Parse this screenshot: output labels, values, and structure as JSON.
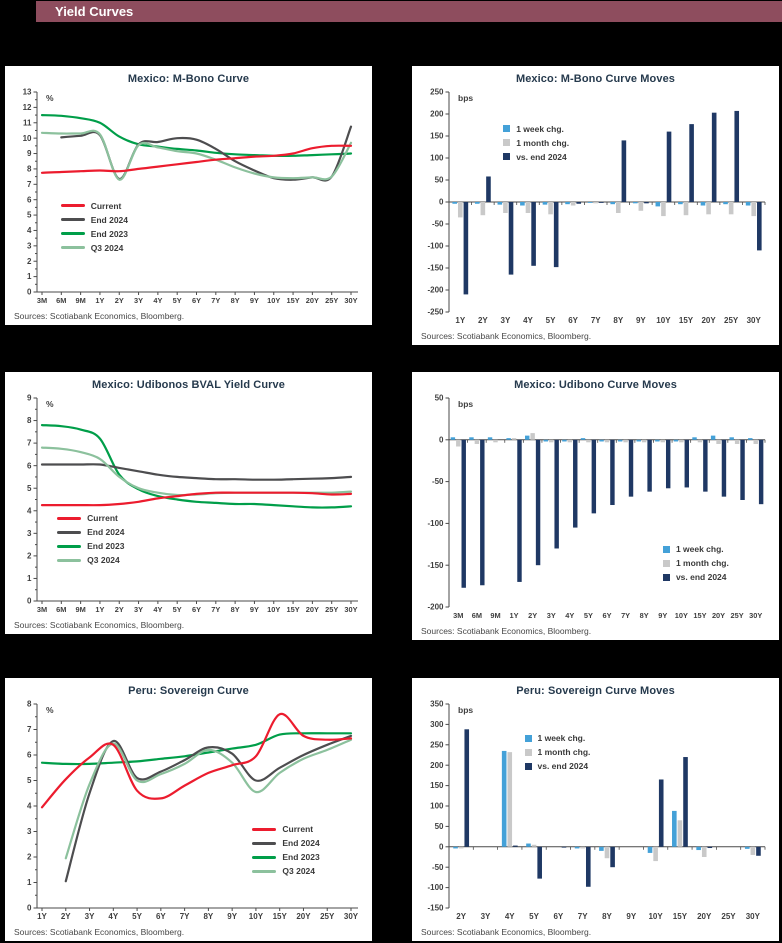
{
  "page": {
    "title": "Yield Curves"
  },
  "colors": {
    "header": "#8E4D5E",
    "current": "#EC1C2E",
    "end2024": "#4D4D4F",
    "end2023": "#009E49",
    "q3_2024": "#8CC19D",
    "week": "#44A1D8",
    "month": "#C9C9C9",
    "vs_end": "#1F3864",
    "axis": "#4A4A4A",
    "unit_label": "#808080"
  },
  "chart_data": [
    {
      "type": "line",
      "title": "Mexico: M-Bono Curve",
      "unit": "%",
      "ylim": [
        0,
        13
      ],
      "ytick": 1,
      "categories": [
        "3M",
        "6M",
        "9M",
        "1Y",
        "2Y",
        "3Y",
        "4Y",
        "5Y",
        "6Y",
        "7Y",
        "8Y",
        "9Y",
        "10Y",
        "15Y",
        "20Y",
        "25Y",
        "30Y"
      ],
      "series": [
        {
          "name": "End 2023",
          "color": "end2023",
          "values": [
            11.5,
            11.45,
            11.3,
            11.0,
            10.1,
            9.6,
            9.45,
            9.3,
            9.2,
            9.05,
            8.95,
            8.9,
            8.85,
            8.85,
            8.9,
            8.95,
            9.0
          ]
        },
        {
          "name": "End 2024",
          "color": "end2024",
          "values": [
            null,
            10.05,
            10.15,
            10.2,
            7.35,
            9.6,
            9.75,
            10.0,
            9.9,
            9.3,
            8.5,
            7.9,
            7.4,
            7.3,
            7.45,
            7.5,
            10.75
          ]
        },
        {
          "name": "Q3 2024",
          "color": "q3_2024",
          "values": [
            10.35,
            10.3,
            10.3,
            10.25,
            7.3,
            9.55,
            9.4,
            9.15,
            9.0,
            8.6,
            8.1,
            7.7,
            7.45,
            7.4,
            7.45,
            7.5,
            9.7
          ]
        },
        {
          "name": "Current",
          "color": "current",
          "values": [
            7.75,
            7.8,
            7.85,
            7.9,
            7.85,
            8.0,
            8.15,
            8.3,
            8.45,
            8.6,
            8.7,
            8.8,
            8.85,
            9.0,
            9.35,
            9.5,
            9.5
          ]
        }
      ],
      "legend_order": [
        "Current",
        "End 2024",
        "End 2023",
        "Q3 2024"
      ],
      "legend_pos": {
        "x": "14%",
        "y": "52%"
      },
      "source": "Sources: Scotiabank Economics, Bloomberg."
    },
    {
      "type": "bar",
      "title": "Mexico: M-Bono Curve Moves",
      "unit": "bps",
      "ylim": [
        -250,
        250
      ],
      "ytick": 50,
      "categories": [
        "1Y",
        "2Y",
        "3Y",
        "4Y",
        "5Y",
        "6Y",
        "7Y",
        "8Y",
        "9Y",
        "10Y",
        "15Y",
        "20Y",
        "25Y",
        "30Y"
      ],
      "series": [
        {
          "name": "1 week chg.",
          "color": "week",
          "values": [
            -4,
            -4,
            -6,
            -8,
            -6,
            -5,
            -2,
            -5,
            -3,
            -10,
            -5,
            -8,
            -5,
            -8
          ]
        },
        {
          "name": "1 month chg.",
          "color": "month",
          "values": [
            -35,
            -30,
            -25,
            -25,
            -28,
            -8,
            -3,
            -25,
            -20,
            -32,
            -30,
            -28,
            -28,
            -32
          ]
        },
        {
          "name": "vs. end 2024",
          "color": "vs_end",
          "values": [
            -210,
            58,
            -165,
            -145,
            -148,
            -4,
            -2,
            140,
            -3,
            160,
            177,
            203,
            207,
            -110
          ]
        }
      ],
      "legend_order": [
        "1 week chg.",
        "1 month chg.",
        "vs. end 2024"
      ],
      "legend_pos": {
        "x": "24%",
        "y": "16%"
      },
      "source": "Sources: Scotiabank Economics, Bloomberg."
    },
    {
      "type": "line",
      "title": "Mexico: Udibonos BVAL Yield Curve",
      "unit": "%",
      "ylim": [
        0,
        9
      ],
      "ytick": 1,
      "categories": [
        "3M",
        "6M",
        "9M",
        "1Y",
        "2Y",
        "3Y",
        "4Y",
        "5Y",
        "6Y",
        "7Y",
        "8Y",
        "9Y",
        "10Y",
        "15Y",
        "20Y",
        "25Y",
        "30Y"
      ],
      "series": [
        {
          "name": "End 2023",
          "color": "end2023",
          "values": [
            7.8,
            7.75,
            7.6,
            7.2,
            5.6,
            4.95,
            4.65,
            4.5,
            4.4,
            4.35,
            4.3,
            4.3,
            4.25,
            4.2,
            4.15,
            4.15,
            4.2
          ]
        },
        {
          "name": "End 2024",
          "color": "end2024",
          "values": [
            6.05,
            6.05,
            6.05,
            6.05,
            5.9,
            5.75,
            5.6,
            5.5,
            5.45,
            5.4,
            5.4,
            5.38,
            5.38,
            5.4,
            5.42,
            5.45,
            5.5
          ]
        },
        {
          "name": "Q3 2024",
          "color": "q3_2024",
          "values": [
            6.8,
            6.75,
            6.6,
            6.3,
            5.5,
            5.0,
            4.8,
            4.7,
            4.72,
            4.78,
            4.8,
            4.8,
            4.8,
            4.8,
            4.8,
            4.8,
            4.85
          ]
        },
        {
          "name": "Current",
          "color": "current",
          "values": [
            4.25,
            4.25,
            4.25,
            4.25,
            4.3,
            4.4,
            4.55,
            4.65,
            4.75,
            4.8,
            4.8,
            4.8,
            4.8,
            4.8,
            4.78,
            4.72,
            4.75
          ]
        }
      ],
      "legend_order": [
        "Current",
        "End 2024",
        "End 2023",
        "Q3 2024"
      ],
      "legend_pos": {
        "x": "13%",
        "y": "54%"
      },
      "source": "Sources: Scotiabank Economics, Bloomberg."
    },
    {
      "type": "bar",
      "title": "Mexico: Udibono Curve Moves",
      "unit": "bps",
      "ylim": [
        -200,
        50
      ],
      "ytick": 50,
      "categories": [
        "3M",
        "6M",
        "9M",
        "1Y",
        "2Y",
        "3Y",
        "4Y",
        "5Y",
        "6Y",
        "7Y",
        "8Y",
        "9Y",
        "10Y",
        "15Y",
        "20Y",
        "25Y",
        "30Y"
      ],
      "series": [
        {
          "name": "1 week chg.",
          "color": "week",
          "values": [
            3,
            3,
            3,
            2,
            5,
            -2,
            -2,
            2,
            -2,
            -2,
            -2,
            -2,
            -2,
            3,
            5,
            3,
            2
          ]
        },
        {
          "name": "1 month chg.",
          "color": "month",
          "values": [
            -8,
            -5,
            -3,
            2,
            8,
            -3,
            -3,
            -3,
            -3,
            -3,
            -3,
            -3,
            -3,
            -3,
            -5,
            -5,
            -5
          ]
        },
        {
          "name": "vs. end 2024",
          "color": "vs_end",
          "values": [
            -177,
            -174,
            0,
            -170,
            -150,
            -130,
            -105,
            -88,
            -78,
            -68,
            -62,
            -58,
            -57,
            -62,
            -68,
            -72,
            -77
          ]
        }
      ],
      "legend_order": [
        "1 week chg.",
        "1 month chg.",
        "vs. end 2024"
      ],
      "legend_pos": {
        "x": "69%",
        "y": "66%"
      },
      "source": "Sources: Scotiabank Economics, Bloomberg."
    },
    {
      "type": "line",
      "title": "Peru: Sovereign Curve",
      "unit": "%",
      "ylim": [
        0,
        8
      ],
      "ytick": 1,
      "categories": [
        "1Y",
        "2Y",
        "3Y",
        "4Y",
        "5Y",
        "6Y",
        "7Y",
        "8Y",
        "9Y",
        "10Y",
        "15Y",
        "20Y",
        "25Y",
        "30Y"
      ],
      "series": [
        {
          "name": "End 2023",
          "color": "end2023",
          "values": [
            5.7,
            5.65,
            5.65,
            5.7,
            5.75,
            5.85,
            5.95,
            6.1,
            6.25,
            6.4,
            6.8,
            6.85,
            6.85,
            6.85
          ]
        },
        {
          "name": "End 2024",
          "color": "end2024",
          "values": [
            null,
            1.05,
            4.5,
            6.55,
            5.1,
            5.35,
            5.8,
            6.3,
            6.05,
            5.0,
            5.5,
            6.0,
            6.4,
            6.75
          ]
        },
        {
          "name": "Q3 2024",
          "color": "q3_2024",
          "values": [
            null,
            1.95,
            4.85,
            6.45,
            5.0,
            5.25,
            5.65,
            6.2,
            5.7,
            4.55,
            5.3,
            5.85,
            6.2,
            6.6
          ]
        },
        {
          "name": "Current",
          "color": "current",
          "values": [
            3.95,
            5.05,
            5.9,
            6.4,
            4.6,
            4.3,
            4.8,
            5.3,
            5.6,
            5.95,
            7.6,
            6.75,
            6.6,
            6.65
          ]
        }
      ],
      "legend_order": [
        "Current",
        "End 2024",
        "End 2023",
        "Q3 2024"
      ],
      "legend_pos": {
        "x": "68%",
        "y": "56%"
      },
      "source": "Sources: Scotiabank Economics, Bloomberg."
    },
    {
      "type": "bar",
      "title": "Peru: Sovereign Curve Moves",
      "unit": "bps",
      "ylim": [
        -150,
        350
      ],
      "ytick": 50,
      "categories": [
        "2Y",
        "3Y",
        "4Y",
        "5Y",
        "6Y",
        "7Y",
        "8Y",
        "9Y",
        "10Y",
        "15Y",
        "20Y",
        "25Y",
        "30Y"
      ],
      "series": [
        {
          "name": "1 week chg.",
          "color": "week",
          "values": [
            -4,
            0,
            235,
            8,
            0,
            -4,
            -10,
            0,
            -15,
            88,
            -8,
            0,
            -5
          ]
        },
        {
          "name": "1 month chg.",
          "color": "month",
          "values": [
            -4,
            0,
            232,
            5,
            0,
            -4,
            -28,
            0,
            -35,
            65,
            -25,
            0,
            -20
          ]
        },
        {
          "name": "vs. end 2024",
          "color": "vs_end",
          "values": [
            288,
            0,
            3,
            -78,
            -2,
            -98,
            -50,
            0,
            165,
            220,
            -3,
            0,
            -22
          ]
        }
      ],
      "legend_order": [
        "1 week chg.",
        "1 month chg.",
        "vs. end 2024"
      ],
      "legend_pos": {
        "x": "30%",
        "y": "16%"
      },
      "source": "Sources: Scotiabank Economics, Bloomberg."
    }
  ]
}
